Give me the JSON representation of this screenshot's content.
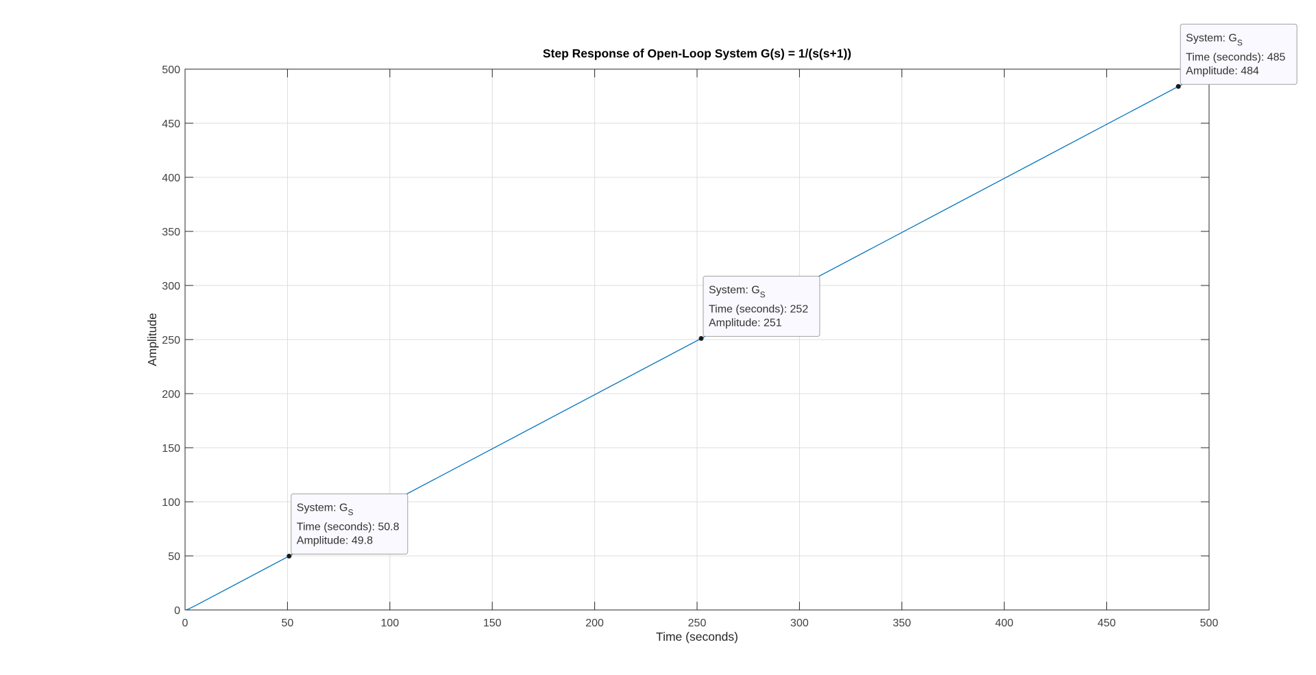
{
  "chart_data": {
    "type": "line",
    "title": "Step Response of Open-Loop System G(s) = 1/(s(s+1))",
    "xlabel": "Time (seconds)",
    "ylabel": "Amplitude",
    "xlim": [
      0,
      500
    ],
    "ylim": [
      0,
      500
    ],
    "xticks": [
      0,
      50,
      100,
      150,
      200,
      250,
      300,
      350,
      400,
      450,
      500
    ],
    "yticks": [
      0,
      50,
      100,
      150,
      200,
      250,
      300,
      350,
      400,
      450,
      500
    ],
    "grid": true,
    "series": [
      {
        "color": "#0072bd",
        "x": [
          0,
          1,
          2,
          5,
          10,
          50,
          100,
          200,
          300,
          400,
          500
        ],
        "y": [
          0,
          0.37,
          1.14,
          4.01,
          9.0,
          49.0,
          99.0,
          199.0,
          299.0,
          399.0,
          499.0
        ]
      }
    ],
    "datatips": [
      {
        "x": 50.8,
        "y": 49.8,
        "system_prefix": "System: G",
        "system_sub": "S",
        "time_text": "Time (seconds): 50.8",
        "amp_text": "Amplitude: 49.8"
      },
      {
        "x": 252,
        "y": 251,
        "system_prefix": "System: G",
        "system_sub": "S",
        "time_text": "Time (seconds): 252",
        "amp_text": "Amplitude: 251"
      },
      {
        "x": 485,
        "y": 484,
        "system_prefix": "System: G",
        "system_sub": "S",
        "time_text": "Time (seconds): 485",
        "amp_text": "Amplitude: 484"
      }
    ]
  }
}
